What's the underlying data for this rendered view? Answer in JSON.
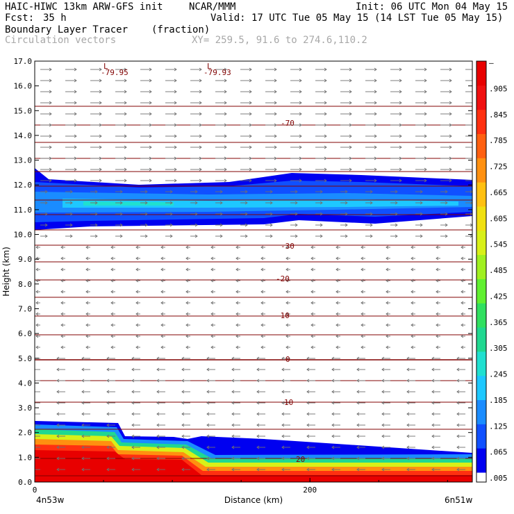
{
  "header": {
    "model": "HAIC-HIWC 13km ARW-GFS init",
    "org": "NCAR/MMM",
    "init": "Init: 06 UTC Mon 04 May 15",
    "fcst_label": "Fcst:",
    "fcst_value": "35 h",
    "valid": "Valid: 17 UTC Tue 05 May 15 (14 LST Tue 05 May 15)",
    "field": "Boundary Layer Tracer",
    "field_units": "(fraction)",
    "vectors": "Circulation vectors",
    "xy": "XY= 259.5, 91.6 to 274.6,110.2"
  },
  "chart_data": {
    "type": "heatmap",
    "ylabel": "Height (km)",
    "xlabel": "Distance (km)",
    "ylim": [
      0.0,
      17.0
    ],
    "xlim": [
      0,
      318
    ],
    "y_ticks": [
      "0.0",
      "1.0",
      "2.0",
      "3.0",
      "4.0",
      "5.0",
      "6.0",
      "7.0",
      "8.0",
      "9.0",
      "10.0",
      "11.0",
      "12.0",
      "13.0",
      "14.0",
      "15.0",
      "16.0",
      "17.0"
    ],
    "x_ticks": [
      "0",
      "200"
    ],
    "x_left_label": "4n53w",
    "x_right_label": "6n51w",
    "colorbar_labels": [
      ".005",
      ".065",
      ".125",
      ".185",
      ".245",
      ".305",
      ".365",
      ".425",
      ".485",
      ".545",
      ".605",
      ".665",
      ".725",
      ".785",
      ".845",
      ".905",
      "–"
    ],
    "colorbar_colors": [
      "#0000f0",
      "#1050ff",
      "#1a8cff",
      "#1ec8ff",
      "#20e0d0",
      "#20d890",
      "#30e060",
      "#60f030",
      "#a0f020",
      "#d8f018",
      "#f0e010",
      "#ffc010",
      "#ff9010",
      "#ff6010",
      "#ff3010",
      "#f01010",
      "#e80000"
    ],
    "contour_labels": [
      {
        "text": "-79.95",
        "x": 0,
        "y": 0
      },
      {
        "text": "-79.93",
        "x": 0,
        "y": 0
      },
      {
        "text": "-70",
        "x": 0,
        "y": 0
      },
      {
        "text": "-30",
        "x": 0,
        "y": 0
      },
      {
        "text": "-20",
        "x": 0,
        "y": 0
      },
      {
        "text": "-10",
        "x": 0,
        "y": 0
      },
      {
        "text": "0",
        "x": 0,
        "y": 0
      },
      {
        "text": "10",
        "x": 0,
        "y": 0
      },
      {
        "text": "20",
        "x": 0,
        "y": 0
      }
    ],
    "low_markers": [
      "L",
      "L"
    ]
  }
}
